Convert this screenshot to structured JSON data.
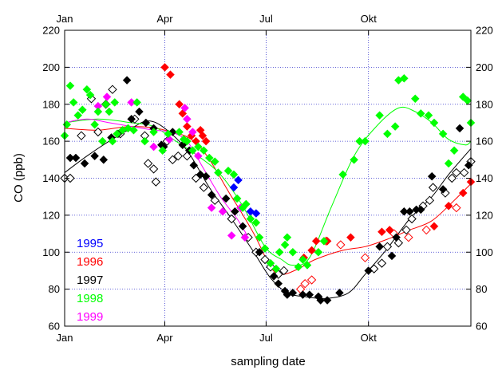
{
  "chart_data": {
    "type": "scatter",
    "xlabel": "sampling date",
    "ylabel": "CO (ppb)",
    "ylim": [
      60,
      220
    ],
    "xlim": [
      0,
      365
    ],
    "x_ticks": [
      {
        "label": "Jan",
        "day": 0
      },
      {
        "label": "Apr",
        "day": 90
      },
      {
        "label": "Jul",
        "day": 181
      },
      {
        "label": "Okt",
        "day": 273
      }
    ],
    "y_ticks": [
      60,
      80,
      100,
      120,
      140,
      160,
      180,
      200,
      220
    ],
    "grid": "dotted",
    "legend_position": "bottom-left",
    "series": [
      {
        "name": "1995",
        "color": "#0000ff",
        "points": [
          [
            152,
            135
          ],
          [
            156,
            139
          ],
          [
            167,
            122
          ],
          [
            172,
            121
          ]
        ]
      },
      {
        "name": "1996",
        "color": "#ff0000",
        "filled": [
          [
            90,
            200
          ],
          [
            95,
            196
          ],
          [
            103,
            180
          ],
          [
            106,
            175
          ],
          [
            110,
            168
          ],
          [
            114,
            163
          ],
          [
            118,
            160
          ],
          [
            122,
            166
          ],
          [
            124,
            163
          ],
          [
            127,
            160
          ],
          [
            215,
            97
          ],
          [
            222,
            101
          ],
          [
            226,
            106
          ],
          [
            236,
            106
          ],
          [
            257,
            108
          ],
          [
            285,
            111
          ],
          [
            292,
            112
          ],
          [
            332,
            114
          ],
          [
            345,
            125
          ],
          [
            358,
            132
          ],
          [
            365,
            138
          ]
        ],
        "hollow": [
          [
            212,
            80
          ],
          [
            216,
            83
          ],
          [
            222,
            85
          ],
          [
            235,
            106
          ],
          [
            248,
            104
          ],
          [
            270,
            97
          ],
          [
            296,
            110
          ],
          [
            309,
            108
          ],
          [
            325,
            112
          ],
          [
            352,
            124
          ]
        ],
        "fit": [
          [
            0,
            167
          ],
          [
            30,
            166
          ],
          [
            60,
            168
          ],
          [
            90,
            166
          ],
          [
            120,
            158
          ],
          [
            150,
            130
          ],
          [
            170,
            110
          ],
          [
            185,
            92
          ],
          [
            195,
            88
          ],
          [
            210,
            91
          ],
          [
            225,
            96
          ],
          [
            250,
            101
          ],
          [
            270,
            103
          ],
          [
            290,
            107
          ],
          [
            310,
            112
          ],
          [
            330,
            117
          ],
          [
            350,
            128
          ],
          [
            365,
            137
          ]
        ]
      },
      {
        "name": "1997",
        "color": "#000000",
        "filled": [
          [
            5,
            151
          ],
          [
            10,
            151
          ],
          [
            18,
            148
          ],
          [
            27,
            152
          ],
          [
            35,
            150
          ],
          [
            42,
            162
          ],
          [
            48,
            164
          ],
          [
            56,
            193
          ],
          [
            60,
            172
          ],
          [
            67,
            176
          ],
          [
            73,
            170
          ],
          [
            80,
            167
          ],
          [
            87,
            158
          ],
          [
            89,
            157
          ],
          [
            97,
            165
          ],
          [
            106,
            158
          ],
          [
            112,
            155
          ],
          [
            116,
            147
          ],
          [
            122,
            142
          ],
          [
            127,
            141
          ],
          [
            132,
            131
          ],
          [
            145,
            129
          ],
          [
            153,
            122
          ],
          [
            160,
            114
          ],
          [
            175,
            100
          ],
          [
            188,
            87
          ],
          [
            192,
            83
          ],
          [
            198,
            79
          ],
          [
            200,
            77
          ],
          [
            205,
            78
          ],
          [
            214,
            77
          ],
          [
            220,
            77
          ],
          [
            228,
            76
          ],
          [
            230,
            74
          ],
          [
            236,
            74
          ],
          [
            247,
            78
          ],
          [
            273,
            90
          ],
          [
            283,
            103
          ],
          [
            294,
            98
          ],
          [
            298,
            108
          ],
          [
            305,
            122
          ],
          [
            310,
            122
          ],
          [
            316,
            123
          ],
          [
            320,
            123
          ],
          [
            330,
            141
          ],
          [
            340,
            134
          ],
          [
            355,
            167
          ],
          [
            363,
            147
          ]
        ],
        "hollow": [
          [
            0,
            140
          ],
          [
            5,
            140
          ],
          [
            15,
            163
          ],
          [
            24,
            183
          ],
          [
            30,
            165
          ],
          [
            37,
            180
          ],
          [
            43,
            188
          ],
          [
            50,
            164
          ],
          [
            63,
            172
          ],
          [
            72,
            163
          ],
          [
            75,
            148
          ],
          [
            80,
            145
          ],
          [
            82,
            138
          ],
          [
            92,
            160
          ],
          [
            97,
            150
          ],
          [
            102,
            152
          ],
          [
            110,
            152
          ],
          [
            118,
            140
          ],
          [
            125,
            135
          ],
          [
            135,
            128
          ],
          [
            150,
            118
          ],
          [
            165,
            108
          ],
          [
            172,
            100
          ],
          [
            180,
            96
          ],
          [
            185,
            92
          ],
          [
            192,
            88
          ],
          [
            197,
            90
          ],
          [
            278,
            91
          ],
          [
            285,
            94
          ],
          [
            290,
            103
          ],
          [
            300,
            105
          ],
          [
            307,
            112
          ],
          [
            312,
            118
          ],
          [
            322,
            125
          ],
          [
            328,
            128
          ],
          [
            331,
            135
          ],
          [
            342,
            132
          ],
          [
            348,
            140
          ],
          [
            352,
            143
          ],
          [
            359,
            143
          ],
          [
            365,
            149
          ]
        ],
        "fit": [
          [
            0,
            143
          ],
          [
            20,
            152
          ],
          [
            40,
            160
          ],
          [
            60,
            167
          ],
          [
            75,
            171
          ],
          [
            90,
            167
          ],
          [
            110,
            155
          ],
          [
            130,
            135
          ],
          [
            150,
            118
          ],
          [
            170,
            100
          ],
          [
            185,
            86
          ],
          [
            200,
            78
          ],
          [
            215,
            76
          ],
          [
            235,
            75
          ],
          [
            255,
            78
          ],
          [
            270,
            88
          ],
          [
            290,
            102
          ],
          [
            310,
            118
          ],
          [
            330,
            130
          ],
          [
            345,
            142
          ],
          [
            365,
            156
          ]
        ]
      },
      {
        "name": "1998",
        "color": "#00ff00",
        "points": [
          [
            0,
            163
          ],
          [
            2,
            169
          ],
          [
            5,
            190
          ],
          [
            8,
            181
          ],
          [
            12,
            174
          ],
          [
            16,
            177
          ],
          [
            20,
            188
          ],
          [
            23,
            185
          ],
          [
            27,
            169
          ],
          [
            30,
            176
          ],
          [
            34,
            160
          ],
          [
            37,
            180
          ],
          [
            40,
            176
          ],
          [
            43,
            160
          ],
          [
            45,
            181
          ],
          [
            47,
            164
          ],
          [
            52,
            166
          ],
          [
            57,
            167
          ],
          [
            62,
            166
          ],
          [
            65,
            181
          ],
          [
            72,
            160
          ],
          [
            80,
            165
          ],
          [
            88,
            155
          ],
          [
            93,
            164
          ],
          [
            103,
            165
          ],
          [
            107,
            161
          ],
          [
            110,
            160
          ],
          [
            115,
            155
          ],
          [
            120,
            157
          ],
          [
            125,
            155
          ],
          [
            130,
            151
          ],
          [
            135,
            149
          ],
          [
            138,
            143
          ],
          [
            147,
            144
          ],
          [
            152,
            142
          ],
          [
            155,
            129
          ],
          [
            160,
            124
          ],
          [
            163,
            126
          ],
          [
            167,
            118
          ],
          [
            172,
            116
          ],
          [
            175,
            108
          ],
          [
            180,
            102
          ],
          [
            185,
            94
          ],
          [
            190,
            91
          ],
          [
            193,
            100
          ],
          [
            198,
            104
          ],
          [
            200,
            108
          ],
          [
            205,
            100
          ],
          [
            210,
            92
          ],
          [
            214,
            96
          ],
          [
            218,
            93
          ],
          [
            228,
            100
          ],
          [
            233,
            106
          ],
          [
            250,
            142
          ],
          [
            260,
            150
          ],
          [
            265,
            160
          ],
          [
            270,
            160
          ],
          [
            283,
            174
          ],
          [
            290,
            164
          ],
          [
            297,
            168
          ],
          [
            300,
            193
          ],
          [
            305,
            194
          ],
          [
            315,
            183
          ],
          [
            320,
            175
          ],
          [
            327,
            174
          ],
          [
            332,
            170
          ],
          [
            340,
            164
          ],
          [
            345,
            148
          ],
          [
            350,
            155
          ],
          [
            358,
            184
          ],
          [
            362,
            182
          ],
          [
            365,
            170
          ]
        ],
        "fit": [
          [
            0,
            170
          ],
          [
            30,
            172
          ],
          [
            60,
            170
          ],
          [
            80,
            168
          ],
          [
            100,
            160
          ],
          [
            120,
            152
          ],
          [
            140,
            142
          ],
          [
            160,
            125
          ],
          [
            180,
            103
          ],
          [
            195,
            96
          ],
          [
            205,
            93
          ],
          [
            220,
            97
          ],
          [
            240,
            125
          ],
          [
            260,
            152
          ],
          [
            280,
            168
          ],
          [
            300,
            178
          ],
          [
            315,
            176
          ],
          [
            330,
            170
          ],
          [
            345,
            161
          ],
          [
            360,
            158
          ],
          [
            365,
            160
          ]
        ]
      },
      {
        "name": "1999",
        "color": "#ff00ff",
        "points": [
          [
            30,
            179
          ],
          [
            38,
            184
          ],
          [
            60,
            181
          ],
          [
            80,
            157
          ],
          [
            94,
            161
          ],
          [
            108,
            178
          ],
          [
            110,
            172
          ],
          [
            115,
            165
          ],
          [
            120,
            152
          ],
          [
            132,
            124
          ],
          [
            142,
            122
          ],
          [
            150,
            109
          ],
          [
            158,
            124
          ],
          [
            162,
            108
          ]
        ],
        "fit": [
          [
            0,
            170
          ],
          [
            20,
            172
          ],
          [
            40,
            170
          ],
          [
            60,
            168
          ],
          [
            80,
            166
          ],
          [
            95,
            165
          ],
          [
            110,
            160
          ],
          [
            125,
            145
          ],
          [
            140,
            130
          ],
          [
            155,
            118
          ],
          [
            165,
            108
          ]
        ]
      }
    ]
  }
}
